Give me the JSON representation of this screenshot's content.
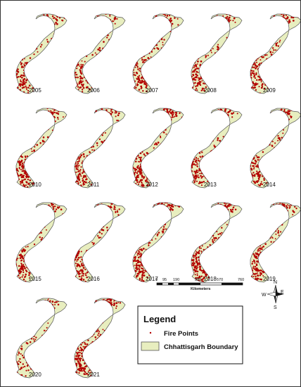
{
  "map": {
    "panels": [
      {
        "year": "2005",
        "col": 0,
        "row": 0,
        "density": 0.55
      },
      {
        "year": "2006",
        "col": 1,
        "row": 0,
        "density": 0.45
      },
      {
        "year": "2007",
        "col": 2,
        "row": 0,
        "density": 0.6
      },
      {
        "year": "2008",
        "col": 3,
        "row": 0,
        "density": 0.55
      },
      {
        "year": "2009",
        "col": 4,
        "row": 0,
        "density": 0.7
      },
      {
        "year": "2010",
        "col": 0,
        "row": 1,
        "density": 0.85
      },
      {
        "year": "2011",
        "col": 1,
        "row": 1,
        "density": 0.7
      },
      {
        "year": "2012",
        "col": 2,
        "row": 1,
        "density": 0.75
      },
      {
        "year": "2013",
        "col": 3,
        "row": 1,
        "density": 0.5
      },
      {
        "year": "2014",
        "col": 4,
        "row": 1,
        "density": 0.55
      },
      {
        "year": "2015",
        "col": 0,
        "row": 2,
        "density": 0.5
      },
      {
        "year": "2016",
        "col": 1,
        "row": 2,
        "density": 0.6
      },
      {
        "year": "2017",
        "col": 2,
        "row": 2,
        "density": 0.8
      },
      {
        "year": "2018",
        "col": 3,
        "row": 2,
        "density": 0.8
      },
      {
        "year": "2019",
        "col": 4,
        "row": 2,
        "density": 0.6
      },
      {
        "year": "2020",
        "col": 0,
        "row": 3,
        "density": 0.35
      },
      {
        "year": "2021",
        "col": 1,
        "row": 3,
        "density": 0.85
      }
    ],
    "scale_bar": {
      "ticks": [
        "0",
        "95",
        "190",
        "380",
        "570",
        "760"
      ],
      "unit": "Kilometers"
    },
    "north_arrow": {
      "n": "N",
      "s": "S",
      "e": "E",
      "w": "W"
    },
    "legend": {
      "title": "Legend",
      "items": [
        {
          "label": "Fire Points",
          "symbol": "point",
          "color": "#b30000"
        },
        {
          "label": "Chhattisgarh Boundary",
          "symbol": "polygon",
          "color": "#e8eebf"
        }
      ]
    },
    "colors": {
      "boundary_fill": "#e8eebf",
      "boundary_stroke": "#555555",
      "fire_points": "#b30000"
    }
  }
}
